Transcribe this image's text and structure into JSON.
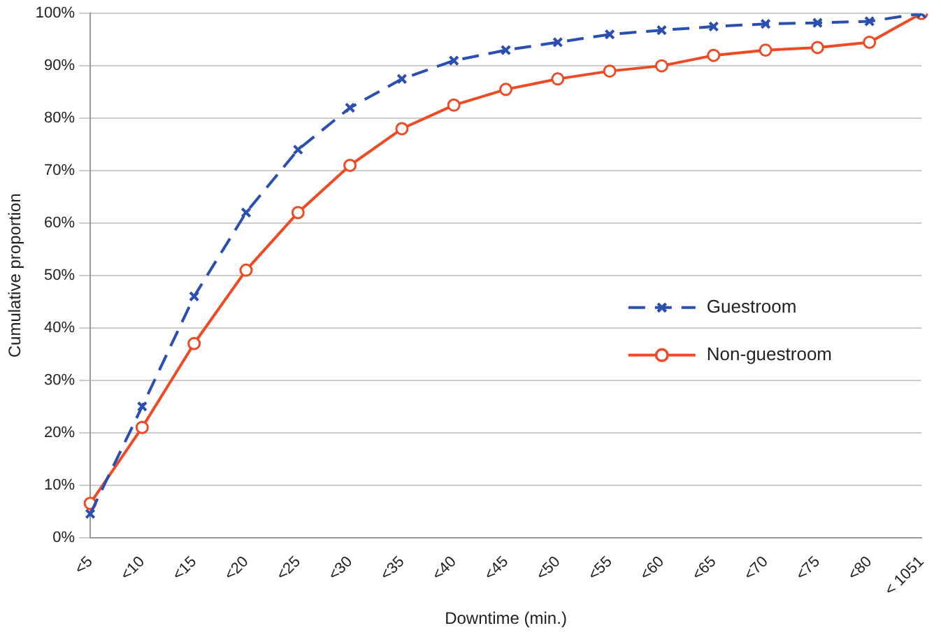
{
  "chart_data": {
    "type": "line",
    "xlabel": "Downtime (min.)",
    "ylabel": "Cumulative proportion",
    "categories": [
      "<5",
      "<10",
      "<15",
      "<20",
      "<25",
      "<30",
      "<35",
      "<40",
      "<45",
      "<50",
      "<55",
      "<60",
      "<65",
      "<70",
      "<75",
      "<80",
      "< 1051"
    ],
    "series": [
      {
        "name": "Guestroom",
        "color": "#2b4fb0",
        "marker": "cross",
        "line_style": "dashed",
        "values": [
          4.5,
          25,
          46,
          62,
          74,
          82,
          87.5,
          91,
          93,
          94.5,
          96,
          96.8,
          97.5,
          98,
          98.2,
          98.5,
          100
        ]
      },
      {
        "name": "Non-guestroom",
        "color": "#f04a24",
        "marker": "circle",
        "line_style": "solid",
        "values": [
          6.5,
          21,
          37,
          51,
          62,
          71,
          78,
          82.5,
          85.5,
          87.5,
          89,
          90,
          92,
          93,
          93.5,
          94.5,
          100
        ]
      }
    ],
    "ylim": [
      0,
      100
    ],
    "yticks": [
      {
        "value": 0,
        "label": "0%"
      },
      {
        "value": 10,
        "label": "10%"
      },
      {
        "value": 20,
        "label": "20%"
      },
      {
        "value": 30,
        "label": "30%"
      },
      {
        "value": 40,
        "label": "40%"
      },
      {
        "value": 50,
        "label": "50%"
      },
      {
        "value": 60,
        "label": "60%"
      },
      {
        "value": 70,
        "label": "70%"
      },
      {
        "value": 80,
        "label": "80%"
      },
      {
        "value": 90,
        "label": "90%"
      },
      {
        "value": 100,
        "label": "100%"
      }
    ],
    "grid": "y",
    "legend": "right"
  }
}
